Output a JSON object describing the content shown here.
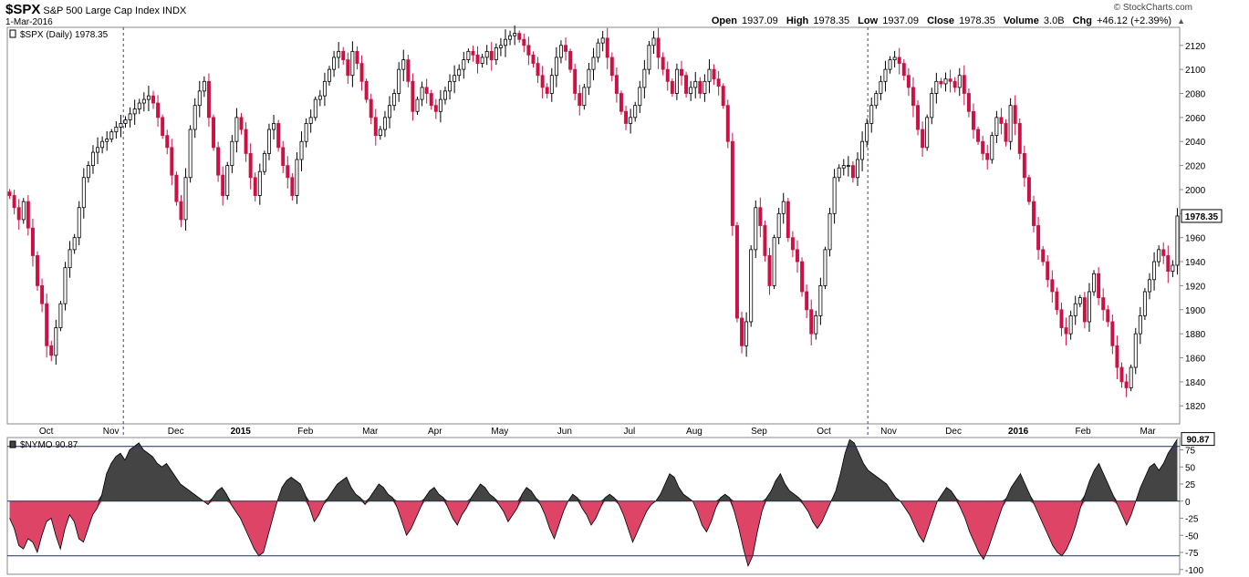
{
  "header": {
    "symbol": "$SPX",
    "name": "S&P 500 Large Cap Index",
    "exchange": "INDX",
    "date": "1-Mar-2016",
    "credit": "© StockCharts.com"
  },
  "quote": {
    "open_label": "Open",
    "open": "1937.09",
    "high_label": "High",
    "high": "1978.35",
    "low_label": "Low",
    "low": "1937.09",
    "close_label": "Close",
    "close": "1978.35",
    "volume_label": "Volume",
    "volume": "3.0B",
    "chg_label": "Chg",
    "chg": "+46.12 (+2.39%)"
  },
  "chart_data": [
    {
      "type": "candlestick",
      "legend": "$SPX (Daily) 1978.35",
      "last_value_label": "1978.35",
      "ylim": [
        1805,
        2135
      ],
      "y_ticks": [
        1820,
        1840,
        1860,
        1880,
        1900,
        1920,
        1940,
        1960,
        1980,
        2000,
        2020,
        2040,
        2060,
        2080,
        2100,
        2120
      ],
      "x_labels": [
        "Oct",
        "Nov",
        "Dec",
        "2015",
        "Feb",
        "Mar",
        "Apr",
        "May",
        "Jun",
        "Jul",
        "Aug",
        "Sep",
        "Oct",
        "Nov",
        "Dec",
        "2016",
        "Feb",
        "Mar"
      ],
      "up_color": "#ffffff",
      "down_color": "#cc1144",
      "close_series": [
        1995,
        1985,
        1975,
        1990,
        1968,
        1945,
        1920,
        1905,
        1870,
        1862,
        1885,
        1905,
        1935,
        1950,
        1960,
        1985,
        2010,
        2020,
        2031,
        2035,
        2040,
        2042,
        2048,
        2052,
        2055,
        2058,
        2063,
        2067,
        2072,
        2075,
        2078,
        2072,
        2060,
        2045,
        2035,
        2012,
        1990,
        1975,
        2010,
        2050,
        2070,
        2082,
        2090,
        2060,
        2035,
        2012,
        1995,
        2020,
        2040,
        2060,
        2050,
        2030,
        2010,
        1995,
        2015,
        2030,
        2050,
        2055,
        2035,
        2020,
        2010,
        1995,
        2025,
        2040,
        2055,
        2060,
        2075,
        2078,
        2090,
        2100,
        2110,
        2115,
        2108,
        2095,
        2115,
        2105,
        2090,
        2075,
        2060,
        2045,
        2050,
        2060,
        2070,
        2080,
        2100,
        2108,
        2090,
        2065,
        2075,
        2085,
        2080,
        2070,
        2065,
        2075,
        2082,
        2090,
        2095,
        2100,
        2108,
        2115,
        2112,
        2105,
        2110,
        2115,
        2108,
        2118,
        2120,
        2125,
        2128,
        2130,
        2125,
        2120,
        2112,
        2105,
        2095,
        2085,
        2080,
        2095,
        2110,
        2120,
        2115,
        2100,
        2080,
        2070,
        2085,
        2100,
        2110,
        2122,
        2126,
        2110,
        2095,
        2080,
        2065,
        2055,
        2060,
        2070,
        2085,
        2100,
        2120,
        2126,
        2110,
        2100,
        2090,
        2080,
        2100,
        2095,
        2080,
        2085,
        2090,
        2080,
        2090,
        2100,
        2092,
        2086,
        2070,
        2040,
        1970,
        1893,
        1870,
        1890,
        1950,
        1985,
        1970,
        1945,
        1920,
        1960,
        1980,
        1990,
        1960,
        1950,
        1940,
        1915,
        1900,
        1880,
        1895,
        1920,
        1950,
        1980,
        2010,
        2018,
        2020,
        2020,
        2010,
        2025,
        2040,
        2055,
        2070,
        2080,
        2090,
        2100,
        2108,
        2110,
        2105,
        2095,
        2085,
        2070,
        2050,
        2035,
        2060,
        2080,
        2090,
        2088,
        2092,
        2090,
        2085,
        2095,
        2080,
        2065,
        2050,
        2040,
        2030,
        2025,
        2045,
        2060,
        2055,
        2040,
        2070,
        2055,
        2030,
        2010,
        1990,
        1970,
        1950,
        1940,
        1925,
        1915,
        1900,
        1885,
        1880,
        1895,
        1905,
        1910,
        1890,
        1915,
        1930,
        1910,
        1900,
        1890,
        1870,
        1852,
        1840,
        1835,
        1852,
        1880,
        1895,
        1915,
        1925,
        1940,
        1950,
        1945,
        1932,
        1937,
        1978
      ]
    },
    {
      "type": "area",
      "legend": "$NYMO 90.87",
      "last_value_label": "90.87",
      "ylim": [
        -107,
        93
      ],
      "y_ticks": [
        100,
        75,
        50,
        25,
        0,
        -25,
        -50,
        -75,
        -100
      ],
      "reference_lines": [
        80,
        0,
        -80
      ],
      "positive_color": "#444444",
      "negative_color": "#dd4466",
      "values": [
        -25,
        -40,
        -65,
        -70,
        -55,
        -60,
        -75,
        -50,
        -30,
        -25,
        -50,
        -70,
        -40,
        -20,
        -30,
        -55,
        -60,
        -40,
        -20,
        -10,
        10,
        40,
        55,
        65,
        70,
        60,
        75,
        80,
        85,
        75,
        70,
        65,
        55,
        50,
        55,
        45,
        35,
        25,
        20,
        15,
        10,
        5,
        0,
        -5,
        5,
        15,
        20,
        10,
        -5,
        -15,
        -25,
        -40,
        -55,
        -70,
        -80,
        -75,
        -50,
        -25,
        0,
        20,
        30,
        35,
        30,
        25,
        10,
        -10,
        -30,
        -20,
        -5,
        5,
        15,
        25,
        30,
        35,
        20,
        10,
        5,
        -5,
        5,
        15,
        25,
        20,
        10,
        5,
        -10,
        -30,
        -50,
        -40,
        -25,
        -10,
        5,
        15,
        20,
        10,
        5,
        -10,
        -25,
        -35,
        -20,
        -10,
        5,
        15,
        25,
        20,
        10,
        5,
        -5,
        -15,
        -30,
        -20,
        -10,
        10,
        20,
        15,
        5,
        -5,
        -20,
        -40,
        -55,
        -35,
        -15,
        0,
        10,
        5,
        -10,
        -20,
        -35,
        -25,
        -10,
        5,
        10,
        5,
        -5,
        -20,
        -40,
        -60,
        -45,
        -30,
        -15,
        -5,
        0,
        10,
        25,
        40,
        35,
        20,
        10,
        5,
        0,
        -15,
        -35,
        -45,
        -30,
        -10,
        5,
        10,
        5,
        -15,
        -40,
        -70,
        -95,
        -80,
        -45,
        -15,
        5,
        15,
        30,
        40,
        25,
        15,
        10,
        5,
        -5,
        -15,
        -30,
        -40,
        -30,
        -15,
        0,
        15,
        40,
        70,
        90,
        85,
        70,
        55,
        45,
        40,
        35,
        30,
        25,
        15,
        5,
        0,
        -10,
        -20,
        -35,
        -50,
        -60,
        -40,
        -20,
        0,
        10,
        20,
        15,
        5,
        -10,
        -25,
        -45,
        -60,
        -75,
        -85,
        -70,
        -50,
        -30,
        -10,
        5,
        20,
        30,
        40,
        25,
        10,
        -5,
        -20,
        -35,
        -50,
        -65,
        -75,
        -80,
        -70,
        -55,
        -35,
        -10,
        10,
        30,
        45,
        55,
        40,
        25,
        10,
        -5,
        -20,
        -35,
        -20,
        0,
        20,
        35,
        50,
        55,
        45,
        55,
        70,
        80,
        90.87
      ]
    }
  ]
}
